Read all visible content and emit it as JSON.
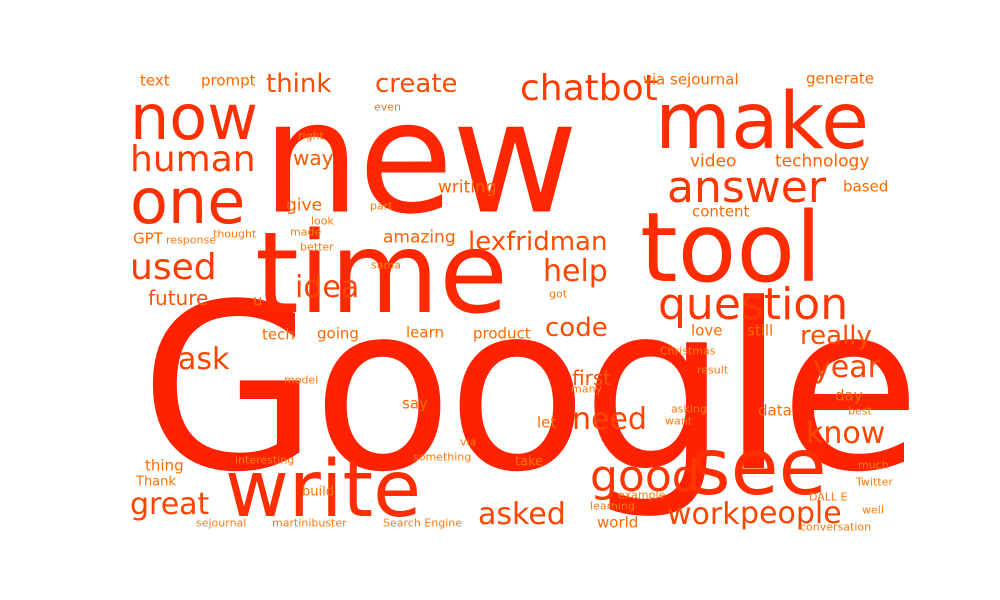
{
  "colors": {
    "background": "#ffffff",
    "primary": "#ff2200",
    "secondary": "#ff7a10"
  },
  "words": {
    "Google": "Google",
    "new": "new",
    "time": "time",
    "tool": "tool",
    "make": "make",
    "write": "write",
    "see": "see",
    "now": "now",
    "one": "one",
    "question": "question",
    "answer": "answer",
    "good": "good",
    "chatbot": "chatbot",
    "human": "human",
    "used": "used",
    "help": "help",
    "idea": "idea",
    "ask": "ask",
    "year": "year",
    "know": "know",
    "asked": "asked",
    "great": "great",
    "work": "work",
    "people": "people",
    "need": "need",
    "think": "think",
    "create": "create",
    "lexfridman": "lexfridman",
    "code": "code",
    "really": "really",
    "future": "future",
    "way": "way",
    "first": "first",
    "writing": "writing",
    "technology": "technology",
    "video": "video",
    "give": "give",
    "amazing": "amazing",
    "content": "content",
    "text": "text",
    "prompt": "prompt",
    "via_sejournal": "via sejournal",
    "generate": "generate",
    "based": "based",
    "GPT": "GPT",
    "tech": "tech",
    "going": "going",
    "learn": "learn",
    "product": "product",
    "love": "love",
    "still": "still",
    "say": "say",
    "day": "day",
    "data": "data",
    "thing": "thing",
    "Thank": "Thank",
    "build": "build",
    "world": "world",
    "let": "let",
    "take": "take",
    "u": "u",
    "even": "even",
    "right": "right",
    "part": "part",
    "look": "look",
    "made": "made",
    "thought": "thought",
    "response": "response",
    "better": "better",
    "sama": "sama",
    "got": "got",
    "Christmas": "Christmas",
    "model": "model",
    "result": "result",
    "many": "many",
    "asking": "asking",
    "want": "want",
    "best": "best",
    "via": "via",
    "interesting": "interesting",
    "something": "something",
    "much": "much",
    "Twitter": "Twitter",
    "DALL_E": "DALL E",
    "example": "example",
    "learning": "learning",
    "well": "well",
    "sejournal": "sejournal",
    "martinibuster": "martinibuster",
    "Search_Engine": "Search Engine",
    "conversation": "conversation"
  }
}
